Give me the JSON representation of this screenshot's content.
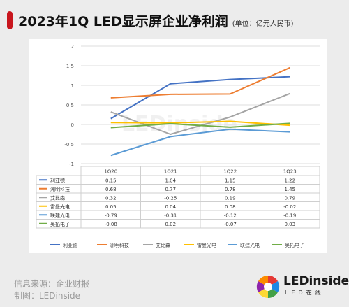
{
  "header": {
    "title": "2023年1Q LED显示屏企业净利润",
    "unit": "(单位：亿元人民币)"
  },
  "chart_data": {
    "type": "line",
    "categories": [
      "1Q20",
      "1Q21",
      "1Q22",
      "1Q23"
    ],
    "ylim": [
      -1,
      2
    ],
    "yticks": [
      -1,
      -0.5,
      0,
      0.5,
      1,
      1.5,
      2
    ],
    "ytick_labels": [
      "-1",
      "-0.5",
      "0",
      "0.5",
      "1",
      "1.5",
      "2"
    ],
    "grid": true,
    "legend": "bottom",
    "series": [
      {
        "name": "利亚德",
        "color": "#4472c4",
        "values": [
          0.15,
          1.04,
          1.15,
          1.22
        ],
        "labels": [
          "0.15",
          "1.04",
          "1.15",
          "1.22"
        ]
      },
      {
        "name": "洲明科技",
        "color": "#ed7d31",
        "values": [
          0.68,
          0.77,
          0.78,
          1.45
        ],
        "labels": [
          "0.68",
          "0.77",
          "0.78",
          "1.45"
        ]
      },
      {
        "name": "艾比森",
        "color": "#a5a5a5",
        "values": [
          0.32,
          -0.25,
          0.19,
          0.79
        ],
        "labels": [
          "0.32",
          "-0.25",
          "0.19",
          "0.79"
        ]
      },
      {
        "name": "雷曼光电",
        "color": "#ffc000",
        "values": [
          0.05,
          0.04,
          0.08,
          -0.02
        ],
        "labels": [
          "0.05",
          "0.04",
          "0.08",
          "-0.02"
        ]
      },
      {
        "name": "联建光电",
        "color": "#5b9bd5",
        "values": [
          -0.79,
          -0.31,
          -0.12,
          -0.19
        ],
        "labels": [
          "-0.79",
          "-0.31",
          "-0.12",
          "-0.19"
        ]
      },
      {
        "name": "奥拓电子",
        "color": "#70ad47",
        "values": [
          -0.08,
          0.02,
          -0.07,
          0.03
        ],
        "labels": [
          "-0.08",
          "0.02",
          "-0.07",
          "0.03"
        ]
      }
    ]
  },
  "watermark": {
    "text": "LEDinside"
  },
  "footer": {
    "source": "信息来源：企业财报",
    "maker": "制图：LEDinside"
  },
  "logo": {
    "text": "LEDinside",
    "sub": "LED在线"
  }
}
